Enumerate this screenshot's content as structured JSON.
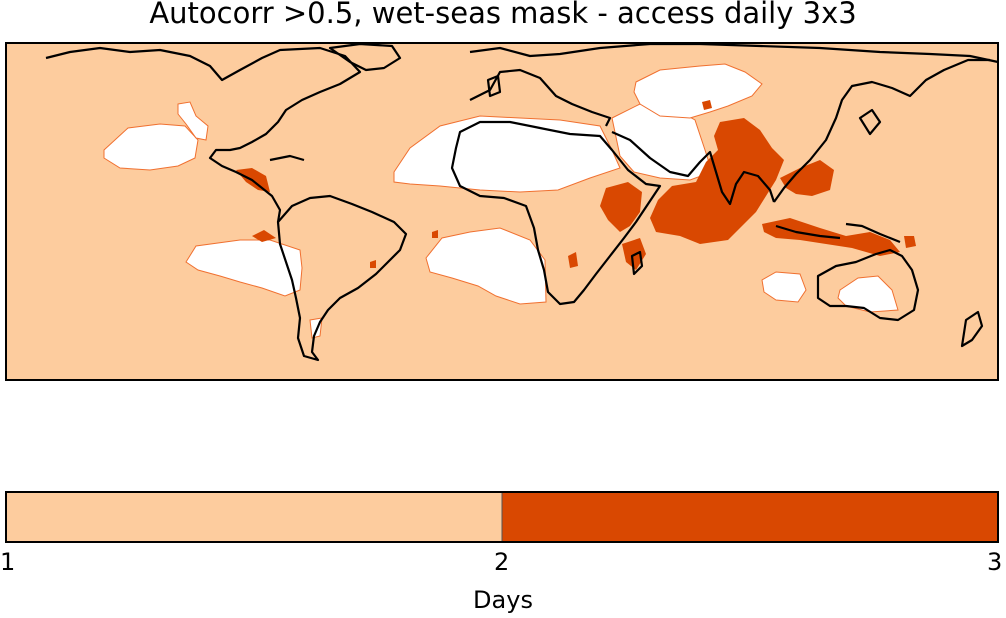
{
  "title": "Autocorr >0.5, wet-seas mask - access daily 3x3",
  "colors": {
    "level_1_2": "#fdcc9e",
    "level_2_3": "#d94801",
    "masked": "#ffffff",
    "contour_line": "#f07030",
    "coast": "#000000"
  },
  "colorbar": {
    "label": "Days",
    "ticks": [
      "1",
      "2",
      "3"
    ],
    "range": [
      1,
      3
    ],
    "levels": [
      {
        "from": 1,
        "to": 2,
        "color": "#fdcc9e"
      },
      {
        "from": 2,
        "to": 3,
        "color": "#d94801"
      }
    ]
  }
}
